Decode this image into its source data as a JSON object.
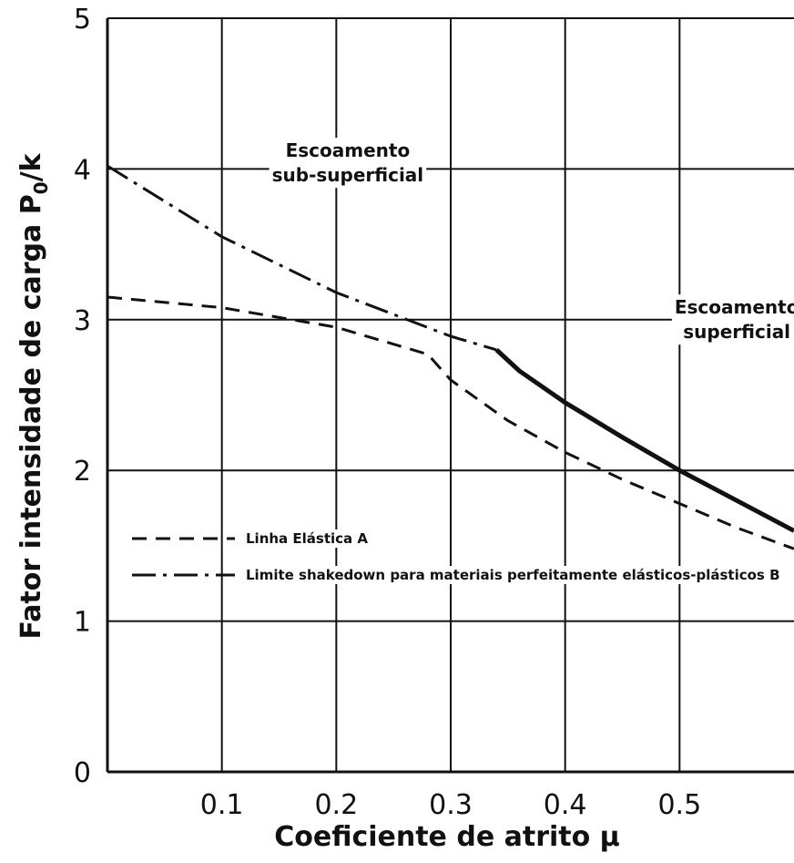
{
  "chart_data": {
    "type": "line",
    "xlabel": "Coeficiente de atrito μ",
    "ylabel": "Fator intensidade de carga P",
    "ylabel_sub": "0",
    "ylabel_tail": "/k",
    "xlim": [
      0,
      0.6
    ],
    "ylim": [
      0,
      5
    ],
    "x_ticks": [
      0.1,
      0.2,
      0.3,
      0.4,
      0.5
    ],
    "x_tick_labels": [
      "0.1",
      "0.2",
      "0.3",
      "0.4",
      "0.5"
    ],
    "y_ticks": [
      0,
      1,
      2,
      3,
      4,
      5
    ],
    "y_tick_labels": [
      "0",
      "1",
      "2",
      "3",
      "4",
      "5"
    ],
    "grid": true,
    "legend_position": "middle-left",
    "series": [
      {
        "name": "Linha Elástica A",
        "style": "dashed",
        "x": [
          0.0,
          0.1,
          0.2,
          0.28,
          0.3,
          0.35,
          0.4,
          0.45,
          0.5,
          0.55,
          0.6
        ],
        "y": [
          3.15,
          3.08,
          2.95,
          2.77,
          2.6,
          2.33,
          2.12,
          1.94,
          1.78,
          1.62,
          1.48
        ]
      },
      {
        "name": "Limite shakedown para materiais perfeitamente elásticos-plásticos B",
        "style": "dashdot",
        "x": [
          0.0,
          0.1,
          0.2,
          0.3,
          0.34
        ],
        "y": [
          4.02,
          3.55,
          3.18,
          2.89,
          2.8
        ]
      },
      {
        "name": "",
        "style": "solid-thick",
        "x": [
          0.34,
          0.36,
          0.4,
          0.45,
          0.5,
          0.55,
          0.6
        ],
        "y": [
          2.8,
          2.66,
          2.45,
          2.22,
          2.0,
          1.8,
          1.6
        ]
      }
    ],
    "annotations": [
      {
        "lines": [
          "Escoamento",
          "sub-superficial"
        ],
        "x": 0.21,
        "y": 4.08
      },
      {
        "lines": [
          "Escoamento",
          "superficial"
        ],
        "x": 0.55,
        "y": 3.04
      }
    ]
  }
}
